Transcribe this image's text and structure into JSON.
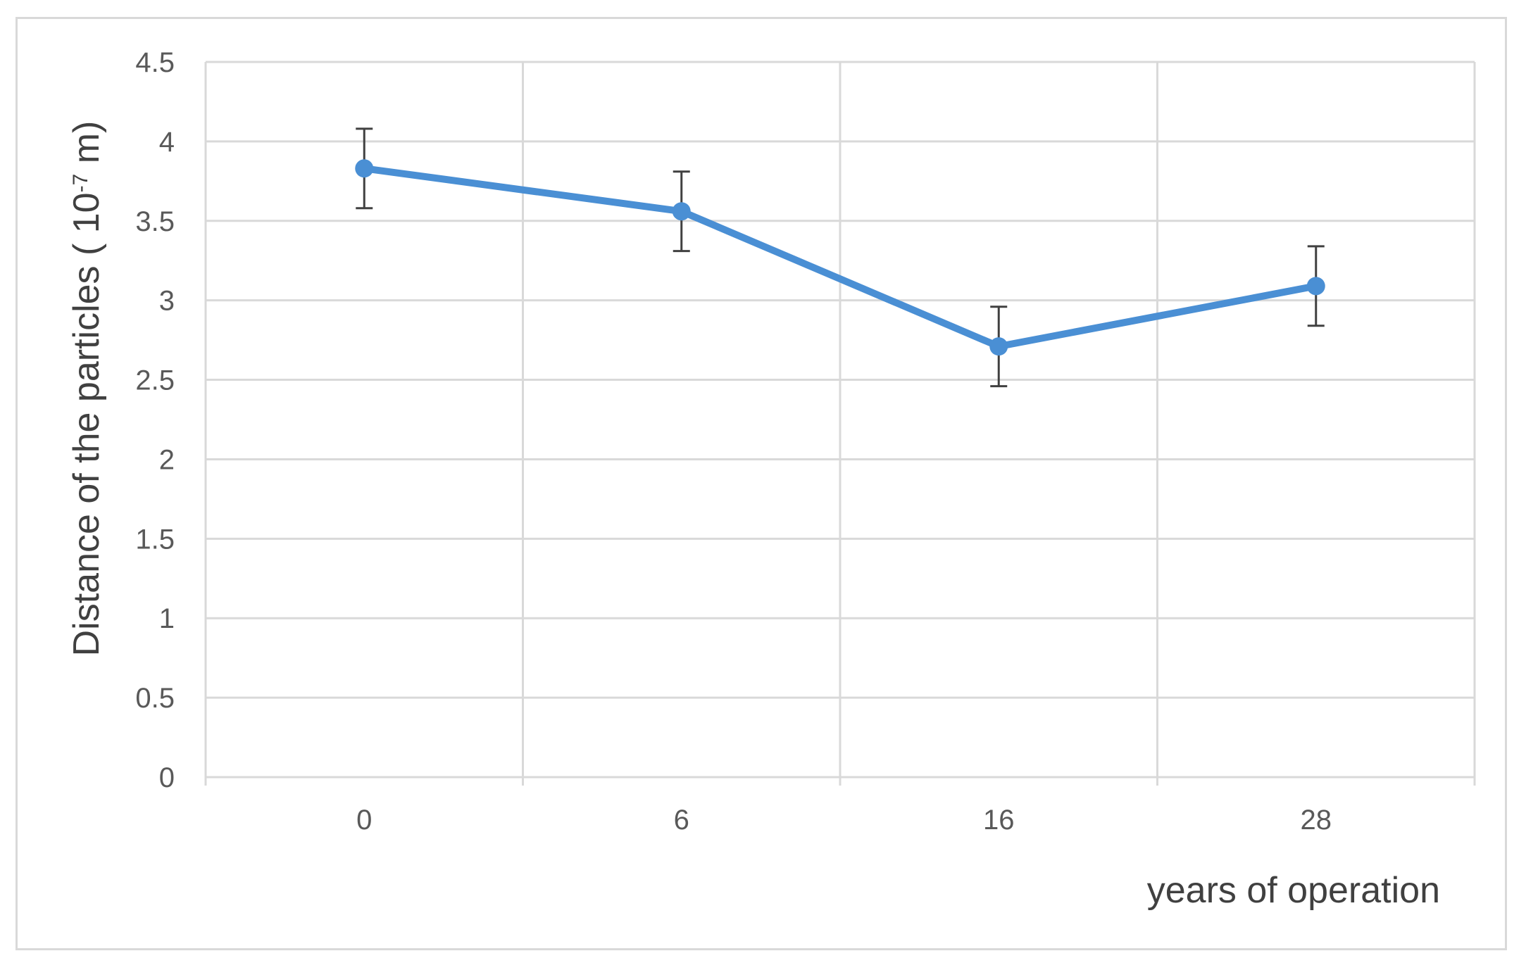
{
  "chart_data": {
    "type": "line",
    "categories": [
      "0",
      "6",
      "16",
      "28"
    ],
    "series": [
      {
        "values": [
          3.83,
          3.56,
          2.71,
          3.09
        ],
        "error": [
          0.25,
          0.25,
          0.25,
          0.25
        ],
        "color": "#4a8fd4"
      }
    ],
    "xlabel": "years  of operation",
    "ylabel": "Distance of the particles ( 10",
    "ylabel_exponent": "-7",
    "ylabel_suffix": " m)",
    "ylim": [
      0,
      4.5
    ],
    "yticks": [
      "0",
      "0.5",
      "1",
      "1.5",
      "2",
      "2.5",
      "3",
      "3.5",
      "4",
      "4.5"
    ],
    "grid": true,
    "legend": "none",
    "errorbar_color": "#404040",
    "grid_color": "#d9d9d9"
  }
}
